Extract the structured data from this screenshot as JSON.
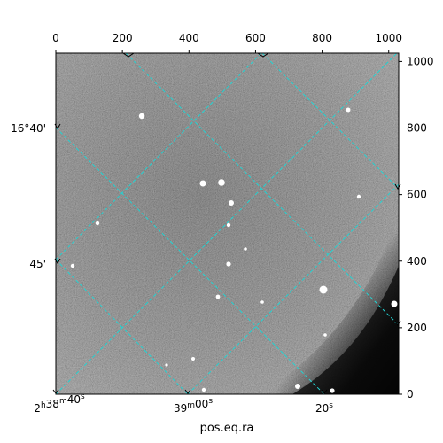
{
  "figure": {
    "xlabel": "pos.eq.ra",
    "pixel_x_ticks": [
      "0",
      "200",
      "400",
      "600",
      "800",
      "1000"
    ],
    "pixel_y_ticks": [
      "0",
      "200",
      "400",
      "600",
      "800",
      "1000"
    ],
    "ra_ticks": [
      {
        "h": "2",
        "h_unit": "h",
        "m": "38",
        "m_unit": "m",
        "s": "40",
        "s_unit": "s"
      },
      {
        "h": "",
        "h_unit": "",
        "m": "39",
        "m_unit": "m",
        "s": "00",
        "s_unit": "s"
      },
      {
        "h": "",
        "h_unit": "",
        "m": "",
        "m_unit": "",
        "s": "20",
        "s_unit": "s"
      }
    ],
    "dec_ticks": [
      "16°40'",
      "45'"
    ],
    "grid_color": "#22d3d3",
    "image_description_colors": {
      "background_sky": "#6a6a6a",
      "dark_corner": "#0a0a0a",
      "stars": "#ffffff"
    }
  }
}
